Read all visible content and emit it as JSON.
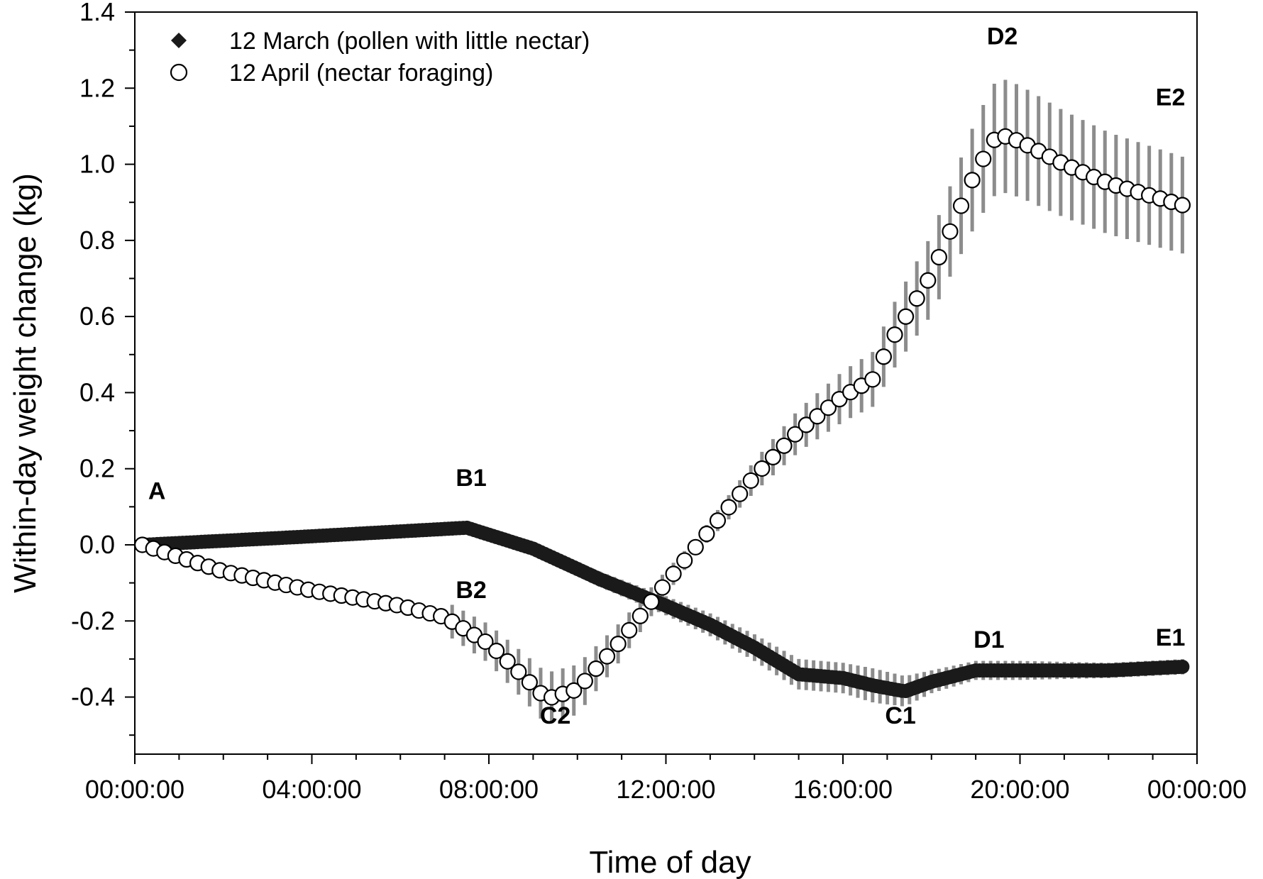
{
  "chart_data": {
    "type": "line",
    "xlabel": "Time of day",
    "ylabel": "Within-day weight change (kg)",
    "xlim": [
      0,
      24
    ],
    "ylim": [
      -0.55,
      1.4
    ],
    "x_ticks": [
      {
        "value": 0,
        "label": "00:00:00"
      },
      {
        "value": 4,
        "label": "04:00:00"
      },
      {
        "value": 8,
        "label": "08:00:00"
      },
      {
        "value": 12,
        "label": "12:00:00"
      },
      {
        "value": 16,
        "label": "16:00:00"
      },
      {
        "value": 20,
        "label": "20:00:00"
      },
      {
        "value": 24,
        "label": "00:00:00"
      }
    ],
    "y_ticks": [
      {
        "value": -0.4,
        "label": "-0.4"
      },
      {
        "value": -0.2,
        "label": "-0.2"
      },
      {
        "value": 0.0,
        "label": "0.0"
      },
      {
        "value": 0.2,
        "label": "0.2"
      },
      {
        "value": 0.4,
        "label": "0.4"
      },
      {
        "value": 0.6,
        "label": "0.6"
      },
      {
        "value": 0.8,
        "label": "0.8"
      },
      {
        "value": 1.0,
        "label": "1.0"
      },
      {
        "value": 1.2,
        "label": "1.2"
      },
      {
        "value": 1.4,
        "label": "1.4"
      }
    ],
    "grid": false,
    "legend_position": "top-left",
    "error_bar_color": "#8c8c8c",
    "series": [
      {
        "name": "12 March (pollen with little nectar)",
        "marker": "filled-circle",
        "legend_marker": "diamond",
        "color": "#1a1a1a",
        "x": [
          0.17,
          3.6,
          7.5,
          9.0,
          10.5,
          12.0,
          13.0,
          14.0,
          15.0,
          16.0,
          16.7,
          17.4,
          18.0,
          19.0,
          20.0,
          22.0,
          23.75
        ],
        "y": [
          0.0,
          0.02,
          0.045,
          -0.01,
          -0.09,
          -0.16,
          -0.21,
          -0.27,
          -0.34,
          -0.35,
          -0.37,
          -0.385,
          -0.36,
          -0.33,
          -0.33,
          -0.33,
          -0.32
        ],
        "err": [
          0.01,
          0.01,
          0.01,
          0.015,
          0.02,
          0.025,
          0.03,
          0.035,
          0.04,
          0.04,
          0.045,
          0.04,
          0.03,
          0.025,
          0.025,
          0.02,
          0.02
        ]
      },
      {
        "name": "12 April (nectar foraging)",
        "marker": "open-circle",
        "legend_marker": "open-circle",
        "color": "#000000",
        "x": [
          0.17,
          2.0,
          4.0,
          6.0,
          7.0,
          8.0,
          9.0,
          9.3,
          10.0,
          11.0,
          12.0,
          13.0,
          14.0,
          15.0,
          16.0,
          16.75,
          17.0,
          18.0,
          19.0,
          19.5,
          20.0,
          21.0,
          22.0,
          23.75
        ],
        "y": [
          0.0,
          -0.07,
          -0.12,
          -0.16,
          -0.19,
          -0.26,
          -0.37,
          -0.405,
          -0.38,
          -0.25,
          -0.1,
          0.04,
          0.18,
          0.3,
          0.39,
          0.44,
          0.52,
          0.71,
          0.98,
          1.08,
          1.06,
          1.0,
          0.95,
          0.89
        ]
      }
    ],
    "annotations": [
      {
        "text": "A",
        "x": 0.5,
        "y": 0.12
      },
      {
        "text": "B1",
        "x": 7.6,
        "y": 0.155
      },
      {
        "text": "B2",
        "x": 7.6,
        "y": -0.14
      },
      {
        "text": "C2",
        "x": 9.5,
        "y": -0.47
      },
      {
        "text": "C1",
        "x": 17.3,
        "y": -0.47
      },
      {
        "text": "D1",
        "x": 19.3,
        "y": -0.27
      },
      {
        "text": "D2",
        "x": 19.6,
        "y": 1.315
      },
      {
        "text": "E1",
        "x": 23.4,
        "y": -0.265
      },
      {
        "text": "E2",
        "x": 23.4,
        "y": 1.155
      }
    ]
  }
}
